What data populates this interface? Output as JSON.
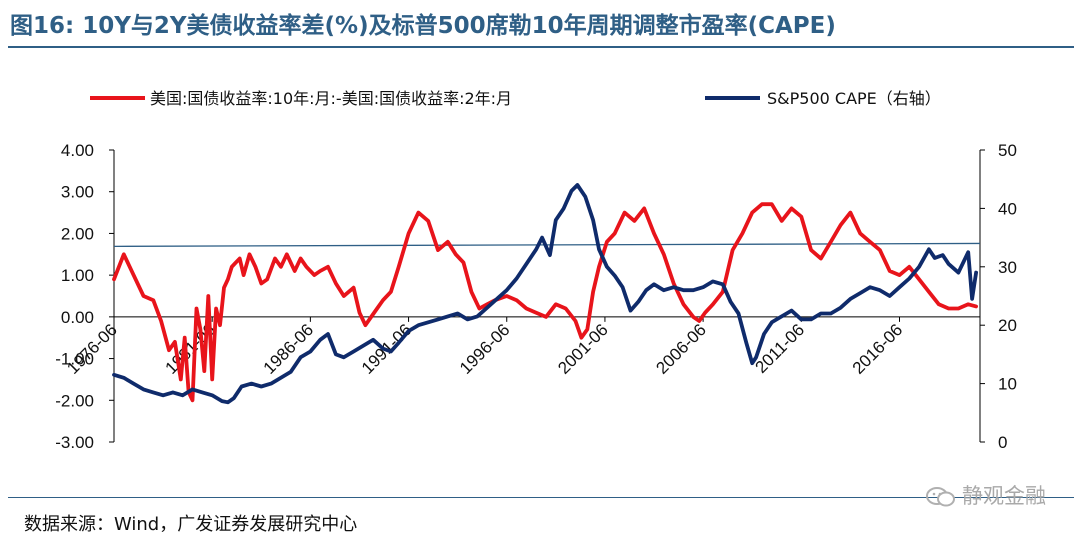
{
  "page": {
    "title": "图16: 10Y与2Y美债收益率差(%)及标普500席勒10年周期调整市盈率(CAPE)",
    "source": "数据来源：Wind，广发证券发展研究中心",
    "watermark": "静观金融"
  },
  "chart_data": {
    "type": "line",
    "title": "图16: 10Y与2Y美债收益率差(%)及标普500席勒10年周期调整市盈率(CAPE)",
    "x_range": [
      1976.5,
      2020.6
    ],
    "x_tick_values": [
      1976.5,
      1981.5,
      1986.5,
      1991.5,
      1996.5,
      2001.5,
      2006.5,
      2011.5,
      2016.5
    ],
    "x_tick_labels": [
      "1976-06",
      "1981-06",
      "1986-06",
      "1991-06",
      "1996-06",
      "2001-06",
      "2006-06",
      "2011-06",
      "2016-06"
    ],
    "y_left": {
      "range": [
        -3,
        4
      ],
      "ticks": [
        4,
        3,
        2,
        1,
        0,
        -1,
        -2,
        -3
      ],
      "tick_labels": [
        "4.00",
        "3.00",
        "2.00",
        "1.00",
        "0.00",
        "-1.00",
        "-2.00",
        "-3.00"
      ]
    },
    "y_right": {
      "range": [
        0,
        50
      ],
      "ticks": [
        50,
        40,
        30,
        20,
        10,
        0
      ],
      "tick_labels": [
        "50",
        "40",
        "30",
        "20",
        "10",
        "0"
      ]
    },
    "reference_line": {
      "axis": "right",
      "start": [
        1976.5,
        33.5
      ],
      "end": [
        2020.6,
        34.0
      ],
      "color": "#2f5f86"
    },
    "legend_position": "top",
    "series": [
      {
        "name": "美国:国债收益率:10年:月:-美国:国债收益率:2年:月",
        "axis": "left",
        "color": "#e8141b",
        "x": [
          1976.5,
          1977.0,
          1977.5,
          1978.0,
          1978.5,
          1978.9,
          1979.3,
          1979.6,
          1979.9,
          1980.1,
          1980.3,
          1980.5,
          1980.7,
          1980.9,
          1981.1,
          1981.3,
          1981.5,
          1981.7,
          1981.9,
          1982.1,
          1982.3,
          1982.5,
          1982.7,
          1982.9,
          1983.1,
          1983.4,
          1983.7,
          1984.0,
          1984.3,
          1984.7,
          1985.0,
          1985.3,
          1985.7,
          1986.0,
          1986.3,
          1986.7,
          1987.0,
          1987.4,
          1987.8,
          1988.2,
          1988.7,
          1989.0,
          1989.3,
          1989.6,
          1989.9,
          1990.2,
          1990.6,
          1991.0,
          1991.5,
          1992.0,
          1992.5,
          1993.0,
          1993.5,
          1993.9,
          1994.3,
          1994.7,
          1995.1,
          1995.5,
          1995.9,
          1996.5,
          1997.0,
          1997.5,
          1998.0,
          1998.5,
          1999.0,
          1999.5,
          2000.0,
          2000.3,
          2000.6,
          2000.9,
          2001.2,
          2001.6,
          2002.0,
          2002.5,
          2003.0,
          2003.5,
          2004.0,
          2004.5,
          2005.0,
          2005.5,
          2006.0,
          2006.3,
          2006.6,
          2007.0,
          2007.5,
          2008.0,
          2008.5,
          2009.0,
          2009.5,
          2010.0,
          2010.5,
          2011.0,
          2011.5,
          2012.0,
          2012.5,
          2013.0,
          2013.5,
          2014.0,
          2014.5,
          2015.0,
          2015.5,
          2016.0,
          2016.5,
          2017.0,
          2017.5,
          2018.0,
          2018.5,
          2019.0,
          2019.5,
          2020.0,
          2020.4
        ],
        "y": [
          0.9,
          1.5,
          1.0,
          0.5,
          0.4,
          -0.1,
          -0.8,
          -0.6,
          -1.5,
          -0.5,
          -1.8,
          -2.0,
          0.2,
          -0.3,
          -1.3,
          0.5,
          -1.5,
          0.2,
          -0.2,
          0.7,
          0.9,
          1.2,
          1.3,
          1.4,
          1.0,
          1.5,
          1.2,
          0.8,
          0.9,
          1.4,
          1.2,
          1.5,
          1.1,
          1.4,
          1.2,
          1.0,
          1.1,
          1.2,
          0.8,
          0.5,
          0.7,
          0.1,
          -0.2,
          0.0,
          0.2,
          0.4,
          0.6,
          1.2,
          2.0,
          2.5,
          2.3,
          1.6,
          1.8,
          1.5,
          1.3,
          0.6,
          0.2,
          0.3,
          0.4,
          0.5,
          0.4,
          0.2,
          0.1,
          0.0,
          0.3,
          0.2,
          -0.1,
          -0.5,
          -0.3,
          0.6,
          1.2,
          1.8,
          2.0,
          2.5,
          2.3,
          2.6,
          2.0,
          1.5,
          0.8,
          0.3,
          0.0,
          -0.1,
          0.1,
          0.3,
          0.6,
          1.6,
          2.0,
          2.5,
          2.7,
          2.7,
          2.3,
          2.6,
          2.4,
          1.6,
          1.4,
          1.8,
          2.2,
          2.5,
          2.0,
          1.8,
          1.6,
          1.1,
          1.0,
          1.2,
          0.9,
          0.6,
          0.3,
          0.2,
          0.2,
          0.3,
          0.25
        ]
      },
      {
        "name": "S&P500 CAPE（右轴）",
        "axis": "right",
        "color": "#0f2b6b",
        "x": [
          1976.5,
          1977.0,
          1977.5,
          1978.0,
          1978.5,
          1979.0,
          1979.5,
          1980.0,
          1980.5,
          1981.0,
          1981.5,
          1982.0,
          1982.3,
          1982.6,
          1983.0,
          1983.5,
          1984.0,
          1984.5,
          1985.0,
          1985.5,
          1986.0,
          1986.5,
          1987.0,
          1987.4,
          1987.8,
          1988.2,
          1988.7,
          1989.2,
          1989.7,
          1990.2,
          1990.6,
          1991.0,
          1991.5,
          1992.0,
          1992.5,
          1993.0,
          1993.5,
          1994.0,
          1994.5,
          1995.0,
          1995.5,
          1996.0,
          1996.5,
          1997.0,
          1997.5,
          1998.0,
          1998.3,
          1998.7,
          1999.0,
          1999.4,
          1999.8,
          2000.1,
          2000.5,
          2000.9,
          2001.2,
          2001.6,
          2002.0,
          2002.4,
          2002.8,
          2003.2,
          2003.6,
          2004.0,
          2004.5,
          2005.0,
          2005.5,
          2006.0,
          2006.5,
          2007.0,
          2007.5,
          2007.9,
          2008.3,
          2008.7,
          2009.0,
          2009.2,
          2009.6,
          2010.0,
          2010.5,
          2011.0,
          2011.5,
          2012.0,
          2012.5,
          2013.0,
          2013.5,
          2014.0,
          2014.5,
          2015.0,
          2015.5,
          2016.0,
          2016.5,
          2017.0,
          2017.5,
          2018.0,
          2018.3,
          2018.7,
          2019.0,
          2019.5,
          2020.0,
          2020.2,
          2020.4
        ],
        "y": [
          11.5,
          11.0,
          10.0,
          9.0,
          8.5,
          8.0,
          8.5,
          8.0,
          9.0,
          8.5,
          8.0,
          7.0,
          6.8,
          7.5,
          9.5,
          10.0,
          9.5,
          10.0,
          11.0,
          12.0,
          14.5,
          15.5,
          17.5,
          18.5,
          15.0,
          14.5,
          15.5,
          16.5,
          17.5,
          16.0,
          15.5,
          17.0,
          19.0,
          20.0,
          20.5,
          21.0,
          21.5,
          22.0,
          21.0,
          21.5,
          23.0,
          24.5,
          26.0,
          28.0,
          30.5,
          33.0,
          35.0,
          32.0,
          38.0,
          40.0,
          43.0,
          44.0,
          42.0,
          38.0,
          33.0,
          30.0,
          28.5,
          26.5,
          22.5,
          24.0,
          26.0,
          27.0,
          26.0,
          26.5,
          26.0,
          26.0,
          26.5,
          27.5,
          27.0,
          24.0,
          22.0,
          17.0,
          13.5,
          14.5,
          18.5,
          20.5,
          21.5,
          22.5,
          21.0,
          21.0,
          22.0,
          22.0,
          23.0,
          24.5,
          25.5,
          26.5,
          26.0,
          25.0,
          26.5,
          28.0,
          30.0,
          33.0,
          31.5,
          32.0,
          30.5,
          29.0,
          32.5,
          24.5,
          29.0
        ]
      }
    ]
  }
}
